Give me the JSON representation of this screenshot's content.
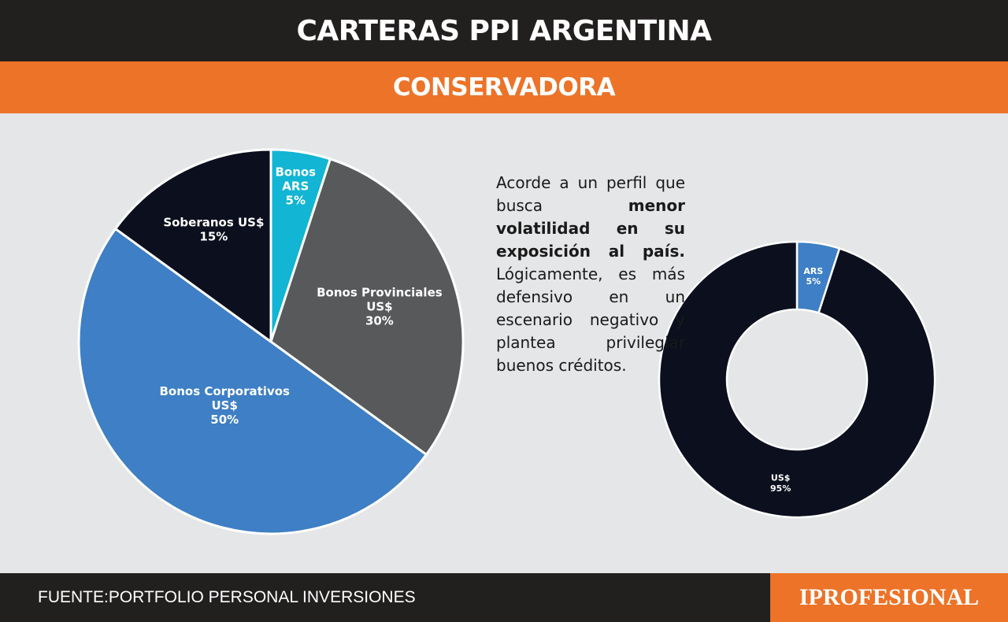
{
  "header": {
    "title": "CARTERAS PPI ARGENTINA"
  },
  "subheader": {
    "title": "CONSERVADORA"
  },
  "description": {
    "part1": "Acorde a un perfil que busca ",
    "bold": "menor volatilidad en su exposición al país.",
    "part2": " Lógicamente, es más defensivo en un escenario negativo y plantea privilegiar buenos créditos."
  },
  "footer": {
    "source": "FUENTE:PORTFOLIO PERSONAL INVERSIONES",
    "brand": "IPROFESIONAL"
  },
  "colors": {
    "dark": "#0b0f1e",
    "orange": "#ec7328",
    "blue": "#3e7fc5",
    "gray": "#58595b",
    "cyan": "#12b5d3"
  },
  "chart_data": [
    {
      "type": "pie",
      "slices": [
        {
          "label_lines": [
            "Bonos",
            "ARS"
          ],
          "value": 5,
          "value_label": "5%",
          "color": "#12b5d3",
          "text_color": "#ffffff"
        },
        {
          "label_lines": [
            "Bonos Provinciales",
            "US$"
          ],
          "value": 30,
          "value_label": "30%",
          "color": "#58595b",
          "text_color": "#ffffff"
        },
        {
          "label_lines": [
            "Bonos Corporativos",
            "US$"
          ],
          "value": 50,
          "value_label": "50%",
          "color": "#3e7fc5",
          "text_color": "#ffffff"
        },
        {
          "label_lines": [
            "Soberanos US$"
          ],
          "value": 15,
          "value_label": "15%",
          "color": "#0b0f1e",
          "text_color": "#ffffff"
        }
      ]
    },
    {
      "type": "donut",
      "slices": [
        {
          "label_lines": [
            "ARS"
          ],
          "value": 5,
          "value_label": "5%",
          "color": "#3e7fc5",
          "text_color": "#ffffff"
        },
        {
          "label_lines": [
            "US$"
          ],
          "value": 95,
          "value_label": "95%",
          "color": "#0b0f1e",
          "text_color": "#ffffff"
        }
      ]
    }
  ]
}
